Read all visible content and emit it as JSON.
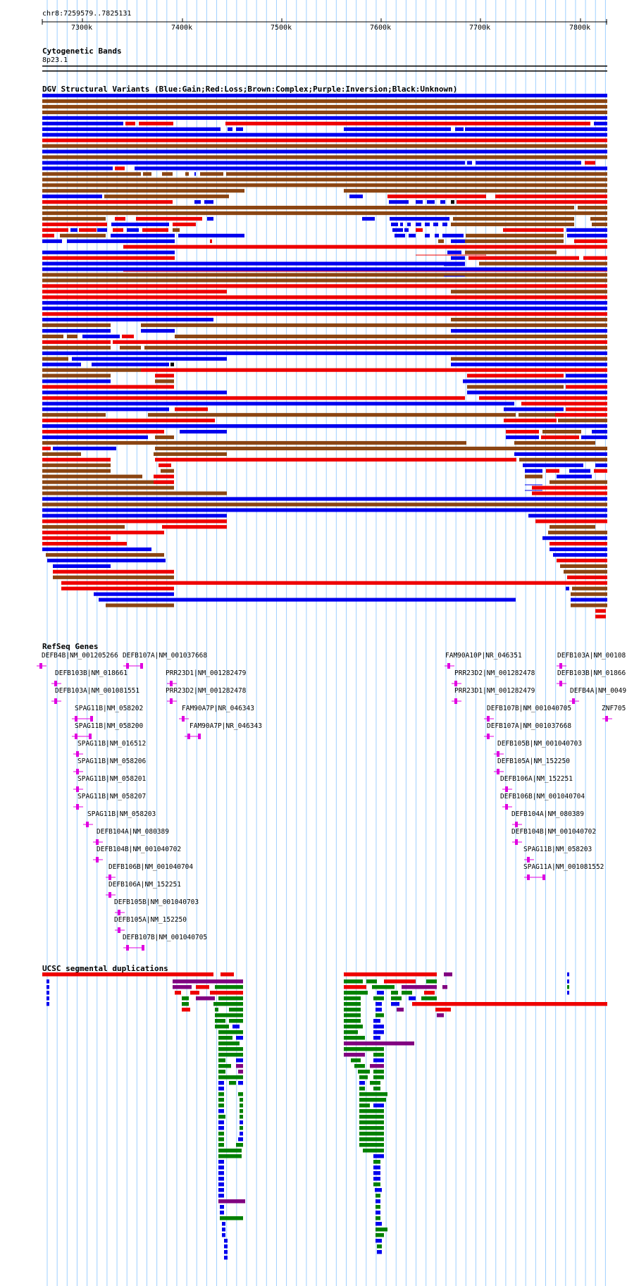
{
  "coord_label": "chr8:7259579..7825131",
  "ruler_ticks": [
    "7300k",
    "7400k",
    "7500k",
    "7600k",
    "7700k",
    "7800k"
  ],
  "tracks": {
    "cytobands": {
      "title": "Cytogenetic Bands",
      "band": "8p23.1"
    },
    "dgv": {
      "title": "DGV Structural Variants (Blue:Gain;Red:Loss;Brown:Complex;Purple:Inversion;Black:Unknown)"
    },
    "refseq": {
      "title": "RefSeq Genes"
    },
    "segdup": {
      "title": "UCSC segmental duplications"
    }
  },
  "colors": {
    "gain": "#0000ee",
    "loss": "#ee0000",
    "complex": "#8b4513",
    "inversion": "#800080",
    "unknown": "#000000",
    "gene": "#e000e0",
    "segdup_green": "#008000",
    "gridline": "#9fd0ff"
  },
  "genes": [
    {
      "label": "DEFB4B|NM_001205266",
      "glyph": "arrow-left"
    },
    {
      "label": "DEFB107A|NM_001037668",
      "glyph": "arrow-right"
    },
    {
      "label": "DEFB103B|NM_018661",
      "glyph": "arrow-left"
    },
    {
      "label": "PRR23D1|NM_001282479",
      "glyph": "arrow-right"
    },
    {
      "label": "DEFB103A|NM_001081551",
      "glyph": "arrow-left"
    },
    {
      "label": "PRR23D2|NM_001282478",
      "glyph": "arrow-right"
    },
    {
      "label": "SPAG11B|NM_058202",
      "glyph": "arrow-left"
    },
    {
      "label": "FAM90A7P|NR_046343",
      "glyph": "arrow-left"
    },
    {
      "label": "SPAG11B|NM_058200",
      "glyph": "arrow-left"
    },
    {
      "label": "FAM90A7P|NR_046343",
      "glyph": "arrow-left"
    },
    {
      "label": "SPAG11B|NM_016512",
      "glyph": "arrow-left"
    },
    {
      "label": "SPAG11B|NM_058206",
      "glyph": "arrow-left"
    },
    {
      "label": "SPAG11B|NM_058201",
      "glyph": "arrow-left"
    },
    {
      "label": "SPAG11B|NM_058207",
      "glyph": "arrow-left"
    },
    {
      "label": "SPAG11B|NM_058203",
      "glyph": "arrow-left"
    },
    {
      "label": "DEFB104A|NM_080389",
      "glyph": "arrow-left"
    },
    {
      "label": "DEFB104B|NM_001040702",
      "glyph": "arrow-left"
    },
    {
      "label": "DEFB106B|NM_001040704",
      "glyph": "arrow-left"
    },
    {
      "label": "DEFB106A|NM_152251",
      "glyph": "arrow-left"
    },
    {
      "label": "DEFB105B|NM_001040703",
      "glyph": "arrow-right"
    },
    {
      "label": "DEFB105A|NM_152250",
      "glyph": "arrow-right"
    },
    {
      "label": "DEFB107B|NM_001040705",
      "glyph": "arrow-right"
    },
    {
      "label": "FAM90A10P|NR_046351",
      "glyph": "arrow-right"
    },
    {
      "label": "PRR23D2|NM_001282478",
      "glyph": "arrow-left"
    },
    {
      "label": "PRR23D1|NM_001282479",
      "glyph": "arrow-left"
    },
    {
      "label": "DEFB107B|NM_001040705",
      "glyph": "arrow-left"
    },
    {
      "label": "DEFB107A|NM_001037668",
      "glyph": "arrow-left"
    },
    {
      "label": "DEFB105B|NM_001040703",
      "glyph": "arrow-left"
    },
    {
      "label": "DEFB105A|NM_152250",
      "glyph": "arrow-left"
    },
    {
      "label": "DEFB106A|NM_152251",
      "glyph": "arrow-right"
    },
    {
      "label": "DEFB106B|NM_001040704",
      "glyph": "arrow-right"
    },
    {
      "label": "DEFB104A|NM_080389",
      "glyph": "arrow-right"
    },
    {
      "label": "DEFB104B|NM_001040702",
      "glyph": "arrow-right"
    },
    {
      "label": "SPAG11B|NM_058203",
      "glyph": "arrow-right"
    },
    {
      "label": "SPAG11A|NM_001081552",
      "glyph": "arrow-right"
    },
    {
      "label": "DEFB103A|NM_00108",
      "glyph": "arrow-right"
    },
    {
      "label": "DEFB103B|NM_01866",
      "glyph": "arrow-right"
    },
    {
      "label": "DEFB4A|NM_0049",
      "glyph": "arrow-right"
    },
    {
      "label": "ZNF705",
      "glyph": "arrow-right"
    }
  ]
}
